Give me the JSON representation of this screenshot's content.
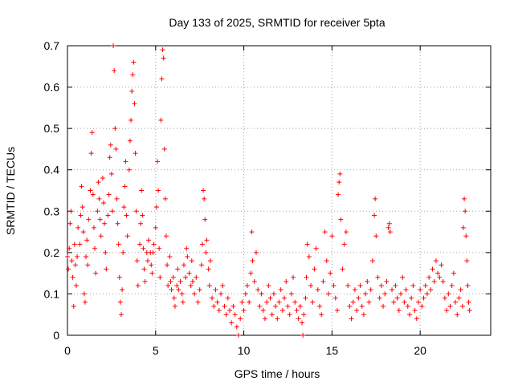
{
  "chart_data": {
    "type": "scatter",
    "title": "Day 133 of 2025, SRMTID for receiver 5pta",
    "xlabel": "GPS time / hours",
    "ylabel": "SRMTID / TECUs",
    "xlim": [
      0,
      24
    ],
    "ylim": [
      0,
      0.7
    ],
    "x_ticks": [
      0,
      5,
      10,
      15,
      20
    ],
    "x_tick_labels": [
      "0",
      "5",
      "10",
      "15",
      "20"
    ],
    "y_ticks": [
      0,
      0.1,
      0.2,
      0.3,
      0.4,
      0.5,
      0.6,
      0.7
    ],
    "y_tick_labels": [
      "0",
      "0.1",
      "0.2",
      "0.3",
      "0.4",
      "0.5",
      "0.6",
      "0.7"
    ],
    "grid": true,
    "marker": "+",
    "marker_color": "#ff0000",
    "series": [
      {
        "name": "SRMTID",
        "points": [
          [
            0.0,
            0.19
          ],
          [
            0.05,
            0.16
          ],
          [
            0.1,
            0.21
          ],
          [
            0.15,
            0.27
          ],
          [
            0.2,
            0.3
          ],
          [
            0.25,
            0.18
          ],
          [
            0.3,
            0.14
          ],
          [
            0.35,
            0.07
          ],
          [
            0.4,
            0.22
          ],
          [
            0.45,
            0.17
          ],
          [
            0.5,
            0.12
          ],
          [
            0.55,
            0.19
          ],
          [
            0.6,
            0.26
          ],
          [
            0.7,
            0.22
          ],
          [
            0.75,
            0.29
          ],
          [
            0.8,
            0.36
          ],
          [
            0.85,
            0.31
          ],
          [
            0.9,
            0.25
          ],
          [
            0.95,
            0.1
          ],
          [
            1.0,
            0.08
          ],
          [
            1.05,
            0.19
          ],
          [
            1.1,
            0.23
          ],
          [
            1.15,
            0.17
          ],
          [
            1.2,
            0.28
          ],
          [
            1.3,
            0.35
          ],
          [
            1.35,
            0.44
          ],
          [
            1.4,
            0.49
          ],
          [
            1.45,
            0.34
          ],
          [
            1.5,
            0.26
          ],
          [
            1.55,
            0.21
          ],
          [
            1.6,
            0.15
          ],
          [
            1.7,
            0.3
          ],
          [
            1.75,
            0.37
          ],
          [
            1.8,
            0.33
          ],
          [
            1.85,
            0.28
          ],
          [
            1.9,
            0.24
          ],
          [
            2.0,
            0.38
          ],
          [
            2.05,
            0.32
          ],
          [
            2.1,
            0.27
          ],
          [
            2.15,
            0.2
          ],
          [
            2.2,
            0.16
          ],
          [
            2.3,
            0.29
          ],
          [
            2.35,
            0.34
          ],
          [
            2.4,
            0.43
          ],
          [
            2.45,
            0.46
          ],
          [
            2.5,
            0.39
          ],
          [
            2.55,
            0.3
          ],
          [
            2.6,
            0.7
          ],
          [
            2.65,
            0.64
          ],
          [
            2.7,
            0.5
          ],
          [
            2.75,
            0.45
          ],
          [
            2.8,
            0.33
          ],
          [
            2.85,
            0.27
          ],
          [
            2.9,
            0.22
          ],
          [
            2.95,
            0.14
          ],
          [
            3.0,
            0.08
          ],
          [
            3.05,
            0.05
          ],
          [
            3.1,
            0.11
          ],
          [
            3.15,
            0.2
          ],
          [
            3.2,
            0.31
          ],
          [
            3.25,
            0.36
          ],
          [
            3.3,
            0.42
          ],
          [
            3.35,
            0.29
          ],
          [
            3.4,
            0.24
          ],
          [
            3.5,
            0.4
          ],
          [
            3.55,
            0.47
          ],
          [
            3.6,
            0.52
          ],
          [
            3.65,
            0.59
          ],
          [
            3.7,
            0.63
          ],
          [
            3.75,
            0.66
          ],
          [
            3.8,
            0.56
          ],
          [
            3.85,
            0.44
          ],
          [
            3.9,
            0.3
          ],
          [
            3.95,
            0.18
          ],
          [
            4.0,
            0.12
          ],
          [
            4.1,
            0.22
          ],
          [
            4.15,
            0.27
          ],
          [
            4.2,
            0.35
          ],
          [
            4.25,
            0.29
          ],
          [
            4.3,
            0.21
          ],
          [
            4.35,
            0.16
          ],
          [
            4.4,
            0.13
          ],
          [
            4.5,
            0.2
          ],
          [
            4.55,
            0.18
          ],
          [
            4.6,
            0.23
          ],
          [
            4.7,
            0.2
          ],
          [
            4.75,
            0.17
          ],
          [
            4.8,
            0.15
          ],
          [
            4.85,
            0.2
          ],
          [
            4.9,
            0.22
          ],
          [
            5.0,
            0.26
          ],
          [
            5.05,
            0.31
          ],
          [
            5.1,
            0.42
          ],
          [
            5.15,
            0.35
          ],
          [
            5.2,
            0.21
          ],
          [
            5.25,
            0.14
          ],
          [
            5.3,
            0.52
          ],
          [
            5.35,
            0.62
          ],
          [
            5.4,
            0.69
          ],
          [
            5.45,
            0.67
          ],
          [
            5.5,
            0.45
          ],
          [
            5.55,
            0.33
          ],
          [
            5.6,
            0.24
          ],
          [
            5.65,
            0.17
          ],
          [
            5.7,
            0.12
          ],
          [
            5.8,
            0.19
          ],
          [
            5.85,
            0.13
          ],
          [
            5.9,
            0.11
          ],
          [
            6.0,
            0.14
          ],
          [
            6.05,
            0.09
          ],
          [
            6.1,
            0.07
          ],
          [
            6.2,
            0.12
          ],
          [
            6.25,
            0.16
          ],
          [
            6.3,
            0.11
          ],
          [
            6.4,
            0.13
          ],
          [
            6.5,
            0.1
          ],
          [
            6.55,
            0.08
          ],
          [
            6.6,
            0.17
          ],
          [
            6.7,
            0.14
          ],
          [
            6.75,
            0.21
          ],
          [
            6.8,
            0.19
          ],
          [
            6.9,
            0.15
          ],
          [
            7.0,
            0.12
          ],
          [
            7.05,
            0.18
          ],
          [
            7.1,
            0.13
          ],
          [
            7.2,
            0.1
          ],
          [
            7.3,
            0.14
          ],
          [
            7.4,
            0.08
          ],
          [
            7.5,
            0.11
          ],
          [
            7.6,
            0.17
          ],
          [
            7.65,
            0.22
          ],
          [
            7.7,
            0.35
          ],
          [
            7.75,
            0.33
          ],
          [
            7.8,
            0.28
          ],
          [
            7.85,
            0.2
          ],
          [
            7.9,
            0.23
          ],
          [
            8.0,
            0.16
          ],
          [
            8.05,
            0.12
          ],
          [
            8.1,
            0.18
          ],
          [
            8.2,
            0.09
          ],
          [
            8.3,
            0.07
          ],
          [
            8.4,
            0.11
          ],
          [
            8.5,
            0.08
          ],
          [
            8.6,
            0.06
          ],
          [
            8.7,
            0.1
          ],
          [
            8.8,
            0.12
          ],
          [
            8.9,
            0.07
          ],
          [
            9.0,
            0.05
          ],
          [
            9.1,
            0.09
          ],
          [
            9.2,
            0.06
          ],
          [
            9.3,
            0.03
          ],
          [
            9.4,
            0.07
          ],
          [
            9.5,
            0.05
          ],
          [
            9.6,
            0.02
          ],
          [
            9.7,
            0.0
          ],
          [
            9.8,
            0.04
          ],
          [
            9.9,
            0.08
          ],
          [
            10.0,
            0.06
          ],
          [
            10.1,
            0.1
          ],
          [
            10.2,
            0.12
          ],
          [
            10.3,
            0.08
          ],
          [
            10.4,
            0.15
          ],
          [
            10.45,
            0.25
          ],
          [
            10.5,
            0.18
          ],
          [
            10.6,
            0.13
          ],
          [
            10.7,
            0.2
          ],
          [
            10.8,
            0.11
          ],
          [
            10.9,
            0.07
          ],
          [
            11.0,
            0.1
          ],
          [
            11.1,
            0.06
          ],
          [
            11.2,
            0.04
          ],
          [
            11.3,
            0.08
          ],
          [
            11.4,
            0.12
          ],
          [
            11.5,
            0.09
          ],
          [
            11.6,
            0.05
          ],
          [
            11.7,
            0.1
          ],
          [
            11.8,
            0.07
          ],
          [
            11.9,
            0.04
          ],
          [
            12.0,
            0.08
          ],
          [
            12.1,
            0.11
          ],
          [
            12.2,
            0.06
          ],
          [
            12.3,
            0.09
          ],
          [
            12.4,
            0.13
          ],
          [
            12.5,
            0.07
          ],
          [
            12.6,
            0.05
          ],
          [
            12.7,
            0.1
          ],
          [
            12.8,
            0.14
          ],
          [
            12.9,
            0.08
          ],
          [
            13.0,
            0.06
          ],
          [
            13.1,
            0.04
          ],
          [
            13.2,
            0.07
          ],
          [
            13.3,
            0.03
          ],
          [
            13.35,
            0.0
          ],
          [
            13.4,
            0.05
          ],
          [
            13.5,
            0.09
          ],
          [
            13.55,
            0.14
          ],
          [
            13.6,
            0.22
          ],
          [
            13.7,
            0.19
          ],
          [
            13.8,
            0.12
          ],
          [
            13.9,
            0.08
          ],
          [
            14.0,
            0.16
          ],
          [
            14.1,
            0.21
          ],
          [
            14.2,
            0.11
          ],
          [
            14.3,
            0.07
          ],
          [
            14.4,
            0.05
          ],
          [
            14.5,
            0.13
          ],
          [
            14.6,
            0.25
          ],
          [
            14.7,
            0.18
          ],
          [
            14.8,
            0.1
          ],
          [
            14.9,
            0.15
          ],
          [
            15.0,
            0.24
          ],
          [
            15.1,
            0.12
          ],
          [
            15.2,
            0.09
          ],
          [
            15.3,
            0.06
          ],
          [
            15.35,
            0.34
          ],
          [
            15.4,
            0.37
          ],
          [
            15.45,
            0.39
          ],
          [
            15.5,
            0.28
          ],
          [
            15.6,
            0.16
          ],
          [
            15.7,
            0.22
          ],
          [
            15.8,
            0.25
          ],
          [
            15.9,
            0.12
          ],
          [
            16.0,
            0.07
          ],
          [
            16.1,
            0.04
          ],
          [
            16.2,
            0.08
          ],
          [
            16.3,
            0.11
          ],
          [
            16.4,
            0.06
          ],
          [
            16.5,
            0.09
          ],
          [
            16.6,
            0.12
          ],
          [
            16.7,
            0.07
          ],
          [
            16.8,
            0.05
          ],
          [
            16.9,
            0.1
          ],
          [
            17.0,
            0.13
          ],
          [
            17.1,
            0.08
          ],
          [
            17.2,
            0.11
          ],
          [
            17.3,
            0.18
          ],
          [
            17.4,
            0.29
          ],
          [
            17.45,
            0.33
          ],
          [
            17.5,
            0.24
          ],
          [
            17.6,
            0.14
          ],
          [
            17.7,
            0.09
          ],
          [
            17.8,
            0.12
          ],
          [
            17.9,
            0.07
          ],
          [
            18.0,
            0.1
          ],
          [
            18.1,
            0.13
          ],
          [
            18.2,
            0.26
          ],
          [
            18.25,
            0.27
          ],
          [
            18.3,
            0.25
          ],
          [
            18.4,
            0.11
          ],
          [
            18.5,
            0.08
          ],
          [
            18.6,
            0.12
          ],
          [
            18.7,
            0.09
          ],
          [
            18.8,
            0.06
          ],
          [
            18.9,
            0.1
          ],
          [
            19.0,
            0.14
          ],
          [
            19.1,
            0.08
          ],
          [
            19.2,
            0.11
          ],
          [
            19.3,
            0.07
          ],
          [
            19.4,
            0.05
          ],
          [
            19.5,
            0.09
          ],
          [
            19.6,
            0.12
          ],
          [
            19.7,
            0.06
          ],
          [
            19.8,
            0.04
          ],
          [
            19.9,
            0.08
          ],
          [
            20.0,
            0.11
          ],
          [
            20.1,
            0.07
          ],
          [
            20.2,
            0.09
          ],
          [
            20.3,
            0.12
          ],
          [
            20.4,
            0.1
          ],
          [
            20.5,
            0.14
          ],
          [
            20.6,
            0.11
          ],
          [
            20.7,
            0.16
          ],
          [
            20.8,
            0.13
          ],
          [
            20.9,
            0.18
          ],
          [
            21.0,
            0.15
          ],
          [
            21.1,
            0.14
          ],
          [
            21.2,
            0.17
          ],
          [
            21.3,
            0.13
          ],
          [
            21.4,
            0.09
          ],
          [
            21.5,
            0.06
          ],
          [
            21.6,
            0.1
          ],
          [
            21.7,
            0.07
          ],
          [
            21.8,
            0.12
          ],
          [
            21.9,
            0.15
          ],
          [
            22.0,
            0.08
          ],
          [
            22.1,
            0.05
          ],
          [
            22.2,
            0.09
          ],
          [
            22.3,
            0.11
          ],
          [
            22.4,
            0.07
          ],
          [
            22.45,
            0.26
          ],
          [
            22.5,
            0.33
          ],
          [
            22.55,
            0.3
          ],
          [
            22.6,
            0.24
          ],
          [
            22.65,
            0.18
          ],
          [
            22.7,
            0.12
          ],
          [
            22.75,
            0.08
          ],
          [
            22.8,
            0.06
          ]
        ]
      }
    ]
  }
}
